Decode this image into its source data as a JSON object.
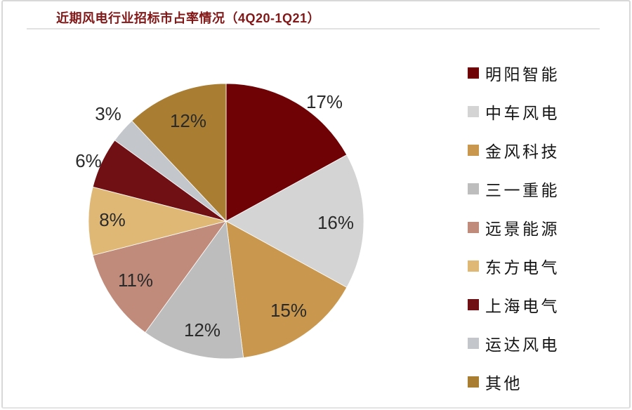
{
  "page": {
    "title": "近期风电行业招标市占率情况（4Q20-1Q21）",
    "title_color": "#821717",
    "background": "#FFFFFF",
    "frame_border_color": "#D8D8D8",
    "underline_color": "#E2E2E2"
  },
  "chart_data": {
    "type": "pie",
    "title": "近期风电行业招标市占率情况（4Q20-1Q21）",
    "unit": "%",
    "legend_position": "right",
    "start_angle_deg": 0,
    "direction": "clockwise",
    "label_color": "#2a2a2a",
    "slices": [
      {
        "label": "明阳智能",
        "value": 17,
        "display": "17%",
        "color": "#6E0205"
      },
      {
        "label": "中车风电",
        "value": 16,
        "display": "16%",
        "color": "#D4D4D4"
      },
      {
        "label": "金风科技",
        "value": 15,
        "display": "15%",
        "color": "#C9984E"
      },
      {
        "label": "三一重能",
        "value": 12,
        "display": "12%",
        "color": "#BDBDBD"
      },
      {
        "label": "远景能源",
        "value": 11,
        "display": "11%",
        "color": "#C08B7A"
      },
      {
        "label": "东方电气",
        "value": 8,
        "display": "8%",
        "color": "#E0B876"
      },
      {
        "label": "上海电气",
        "value": 6,
        "display": "6%",
        "color": "#701014"
      },
      {
        "label": "运达风电",
        "value": 3,
        "display": "3%",
        "color": "#C3C7CC"
      },
      {
        "label": "其他",
        "value": 12,
        "display": "12%",
        "color": "#A97E33"
      }
    ]
  }
}
